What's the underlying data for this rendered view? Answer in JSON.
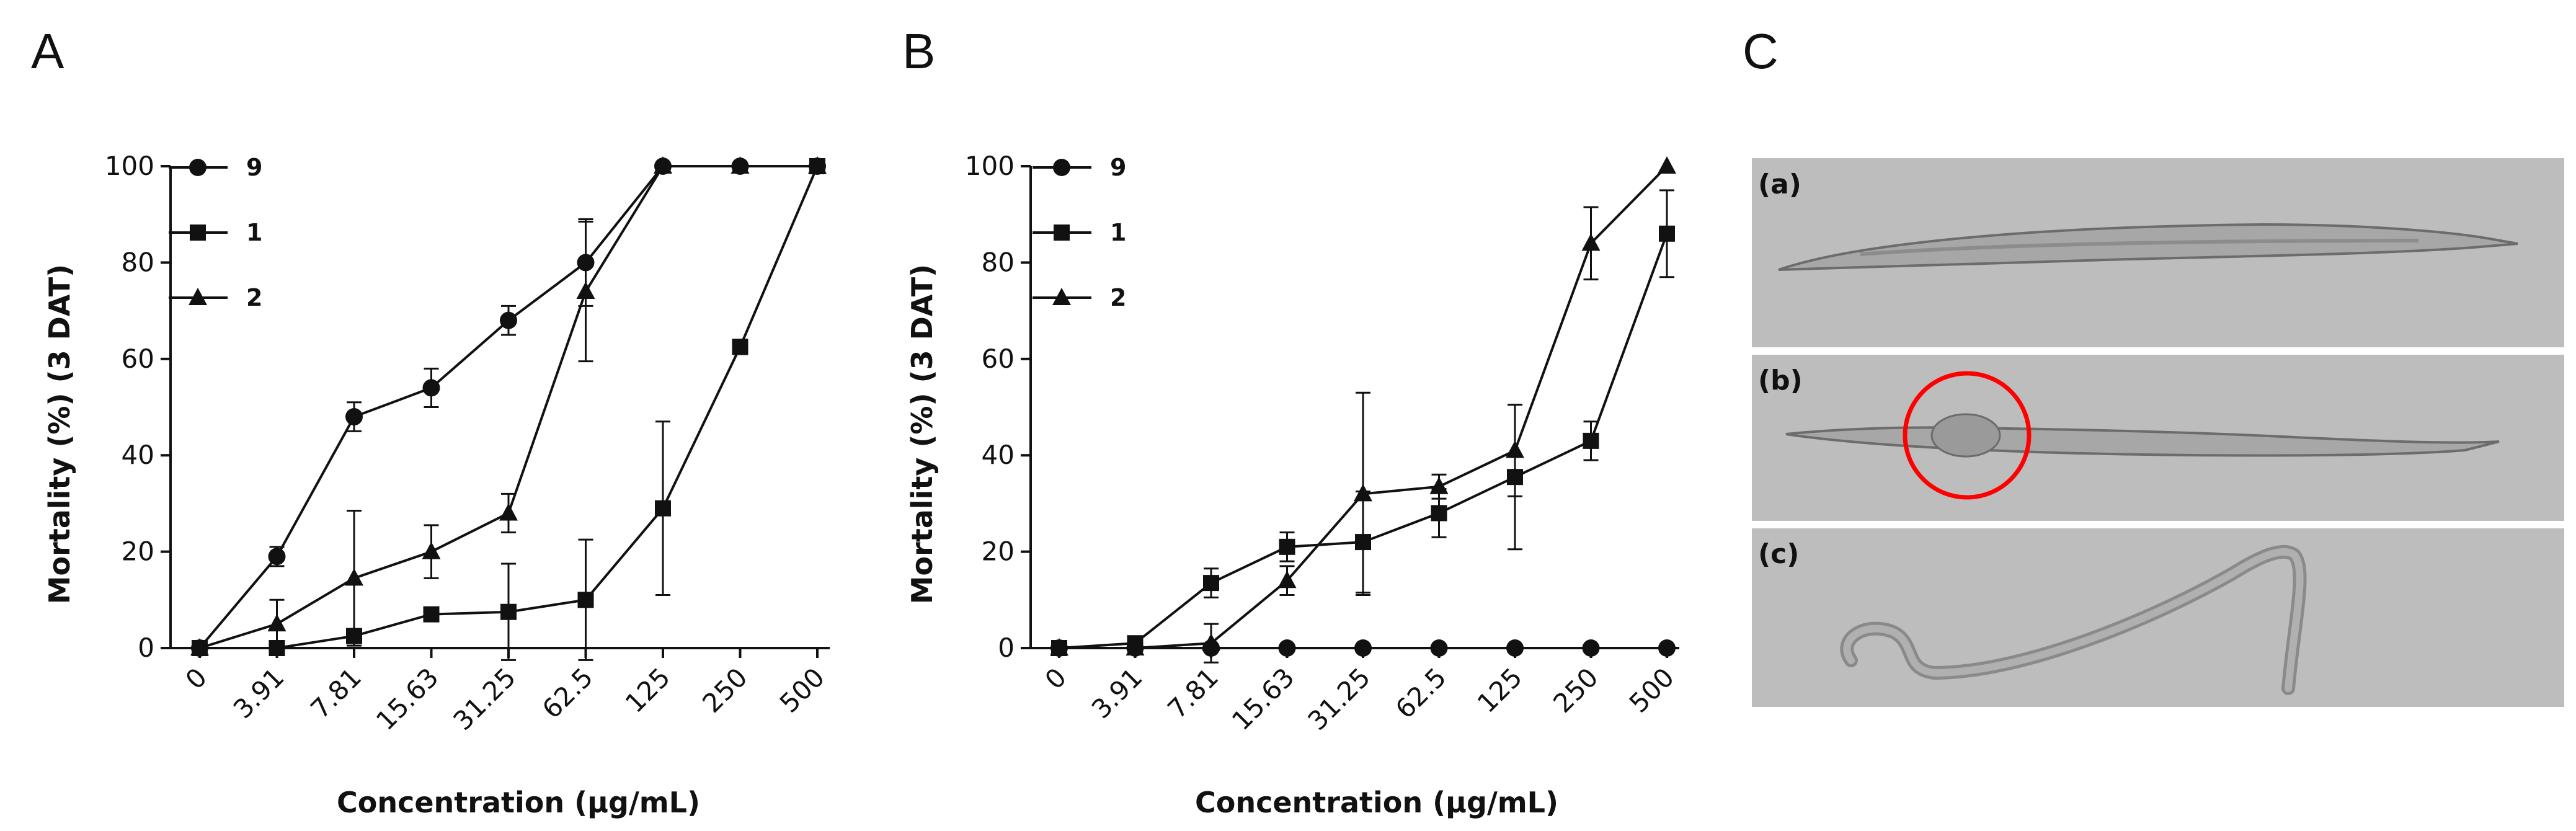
{
  "panels": {
    "a_letter": "A",
    "b_letter": "B",
    "c_letter": "C"
  },
  "chart_data": [
    {
      "panel": "A",
      "type": "line",
      "xlabel": "Concentration (µg/mL)",
      "ylabel": "Mortality (%) (3 DAT)",
      "categories": [
        "0",
        "3.91",
        "7.81",
        "15.63",
        "31.25",
        "62.5",
        "125",
        "250",
        "500"
      ],
      "ylim": [
        0,
        100
      ],
      "yticks": [
        0,
        20,
        40,
        60,
        80,
        100
      ],
      "legend_position": "top-left",
      "series": [
        {
          "name": "9",
          "marker": "circle",
          "values": [
            0,
            19,
            48,
            54,
            68,
            80,
            100,
            100,
            100
          ],
          "errors": [
            0,
            2,
            3,
            4,
            3,
            9,
            0,
            0,
            0
          ]
        },
        {
          "name": "1",
          "marker": "square",
          "values": [
            0,
            0,
            2.5,
            7,
            7.5,
            10,
            29,
            62.5,
            100
          ],
          "errors": [
            0,
            0,
            0,
            0,
            10,
            12.5,
            18,
            1.5,
            0
          ]
        },
        {
          "name": "2",
          "marker": "triangle",
          "values": [
            0,
            5,
            14.5,
            20,
            28,
            74,
            100,
            100,
            100
          ],
          "errors": [
            0,
            5,
            14,
            5.5,
            4,
            14.5,
            0,
            0,
            0
          ]
        }
      ]
    },
    {
      "panel": "B",
      "type": "line",
      "xlabel": "Concentration (µg/mL)",
      "ylabel": "Mortality (%) (3 DAT)",
      "categories": [
        "0",
        "3.91",
        "7.81",
        "15.63",
        "31.25",
        "62.5",
        "125",
        "250",
        "500"
      ],
      "ylim": [
        0,
        100
      ],
      "yticks": [
        0,
        20,
        40,
        60,
        80,
        100
      ],
      "legend_position": "top-left",
      "series": [
        {
          "name": "9",
          "marker": "circle",
          "values": [
            0,
            0,
            0,
            0,
            0,
            0,
            0,
            0,
            0
          ],
          "errors": [
            0,
            0,
            0,
            0,
            0,
            0,
            0,
            0,
            0
          ]
        },
        {
          "name": "1",
          "marker": "square",
          "values": [
            0,
            1,
            13.5,
            21,
            22,
            28,
            35.5,
            43,
            86
          ],
          "errors": [
            0,
            0,
            3,
            3,
            10.5,
            5,
            15,
            4,
            9
          ]
        },
        {
          "name": "2",
          "marker": "triangle",
          "values": [
            0,
            0,
            1,
            14,
            32,
            33.5,
            41,
            84,
            100
          ],
          "errors": [
            0,
            0,
            4,
            3,
            21,
            2.5,
            9.5,
            7.5,
            0
          ]
        }
      ]
    }
  ],
  "microscopy": {
    "label_a": "(a)",
    "label_b": "(b)",
    "label_c": "(c)",
    "bg_color": "#bdbdbd",
    "highlight_color": "#ff0000"
  }
}
